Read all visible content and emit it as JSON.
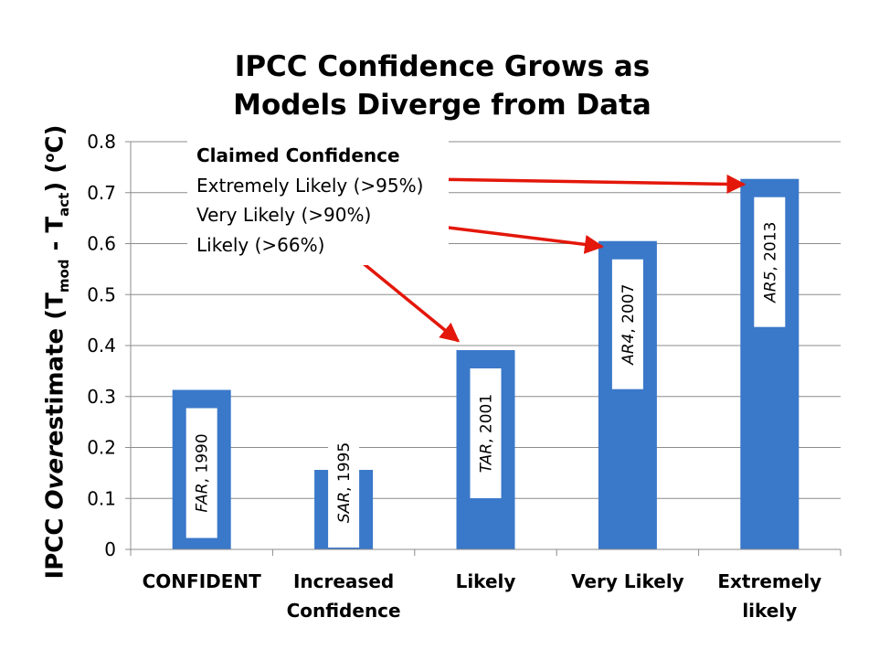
{
  "chart_data": {
    "type": "bar",
    "title": [
      "IPCC Confidence Grows as",
      "Models Diverge from Data"
    ],
    "ylabel": {
      "prefix": "IPCC ",
      "italic": "Over",
      "mid": "estimate (T",
      "sub1": "mod",
      "dash": " - T",
      "sub2": "act",
      "close": ")  (",
      "sup": "o",
      "unit": "C)"
    },
    "ylim": [
      0,
      0.8
    ],
    "yticks": [
      "0",
      "0.1",
      "0.2",
      "0.3",
      "0.4",
      "0.5",
      "0.6",
      "0.7",
      "0.8"
    ],
    "grid": true,
    "color": "#3a78c9",
    "categories": [
      [
        "CONFIDENT"
      ],
      [
        "Increased",
        "Confidence"
      ],
      [
        "Likely"
      ],
      [
        "Very Likely"
      ],
      [
        "Extremely",
        "likely"
      ]
    ],
    "values": [
      0.313,
      0.156,
      0.391,
      0.605,
      0.727
    ],
    "bar_labels": [
      {
        "italic": "FAR",
        "rest": ", 1990"
      },
      {
        "italic": "SAR",
        "rest": ", 1995"
      },
      {
        "italic": "TAR",
        "rest": ", 2001"
      },
      {
        "italic": "AR4",
        "rest": ", 2007"
      },
      {
        "italic": "AR5",
        "rest": ", 2013"
      }
    ],
    "legend": {
      "heading": "Claimed Confidence",
      "items": [
        "Extremely Likely (>95%)",
        "Very Likely (>90%)",
        "Likely (>66%)"
      ],
      "arrow_color": "#e3170a"
    }
  }
}
